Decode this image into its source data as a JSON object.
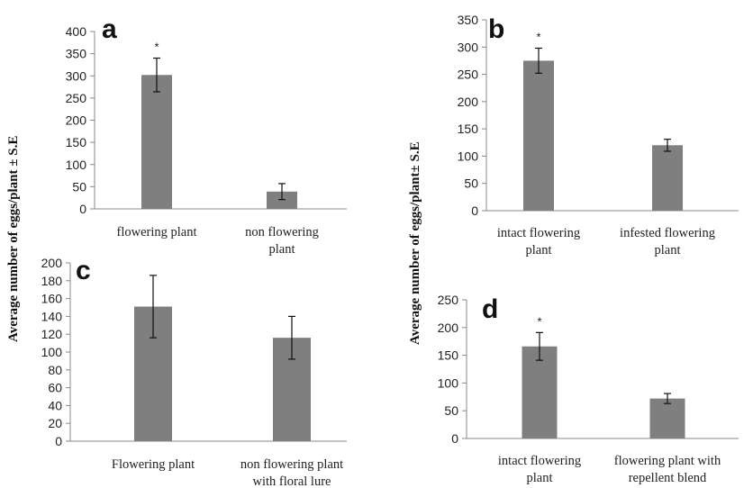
{
  "figure": {
    "ylabel_left": "Average number of eggs/plant ± S.E",
    "ylabel_right": "Average number of eggs/plant± S.E"
  },
  "chart_data": [
    {
      "type": "bar",
      "panel": "a",
      "title": "",
      "xlabel": "",
      "ylabel": "Average number of eggs/plant ± S.E",
      "ylim": [
        0,
        400
      ],
      "yticks": [
        0,
        50,
        100,
        150,
        200,
        250,
        300,
        350,
        400
      ],
      "categories": [
        [
          "flowering plant"
        ],
        [
          "non flowering",
          "plant"
        ]
      ],
      "values": [
        302,
        39
      ],
      "errors": [
        38,
        18
      ],
      "significance": [
        "*",
        ""
      ]
    },
    {
      "type": "bar",
      "panel": "b",
      "title": "",
      "xlabel": "",
      "ylabel": "Average number of eggs/plant± S.E",
      "ylim": [
        0,
        350
      ],
      "yticks": [
        0,
        50,
        100,
        150,
        200,
        250,
        300,
        350
      ],
      "categories": [
        [
          "intact flowering",
          "plant"
        ],
        [
          "infested flowering",
          "plant"
        ]
      ],
      "values": [
        275,
        120
      ],
      "errors": [
        23,
        11
      ],
      "significance": [
        "*",
        ""
      ]
    },
    {
      "type": "bar",
      "panel": "c",
      "title": "",
      "xlabel": "",
      "ylabel": "Average number of eggs/plant ± S.E",
      "ylim": [
        0,
        200
      ],
      "yticks": [
        0,
        20,
        40,
        60,
        80,
        100,
        120,
        140,
        160,
        180,
        200
      ],
      "categories": [
        [
          "Flowering plant"
        ],
        [
          "non flowering plant",
          "with floral lure"
        ]
      ],
      "values": [
        151,
        116
      ],
      "errors": [
        35,
        24
      ],
      "significance": [
        "",
        ""
      ]
    },
    {
      "type": "bar",
      "panel": "d",
      "title": "",
      "xlabel": "",
      "ylabel": "Average number of eggs/plant± S.E",
      "ylim": [
        0,
        250
      ],
      "yticks": [
        0,
        50,
        100,
        150,
        200,
        250
      ],
      "categories": [
        [
          "intact flowering",
          "plant"
        ],
        [
          "flowering plant with",
          "repellent blend"
        ]
      ],
      "values": [
        166,
        72
      ],
      "errors": [
        25,
        9
      ],
      "significance": [
        "*",
        ""
      ]
    }
  ]
}
